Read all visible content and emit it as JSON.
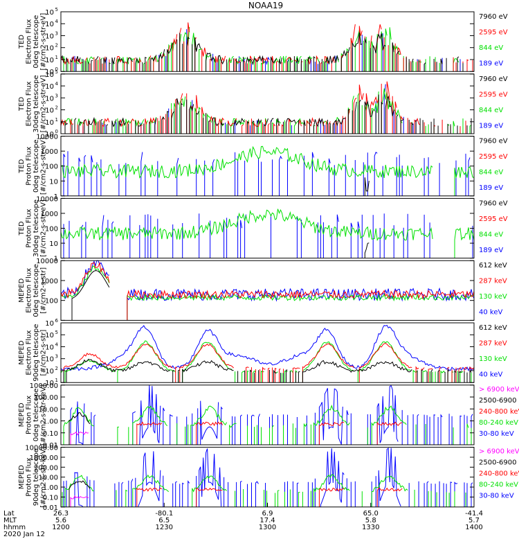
{
  "title": "NOAA19",
  "colors": {
    "black": "#000000",
    "red": "#ff0000",
    "green": "#00e000",
    "blue": "#0000ff",
    "magenta": "#ff00ff"
  },
  "chart_data": {
    "type": "line",
    "x_axis": {
      "rows": [
        {
          "label": "Lat",
          "ticks": [
            "26.3",
            "-80.1",
            "6.9",
            "65.0",
            "-41.4"
          ]
        },
        {
          "label": "MLT",
          "ticks": [
            "5.6",
            "6.5",
            "17.4",
            "5.8",
            "5.7"
          ]
        },
        {
          "label": "hhmm",
          "ticks": [
            "1200",
            "1230",
            "1300",
            "1330",
            "1400"
          ]
        }
      ],
      "date": "2020 Jan 12",
      "range_hhmm": [
        "1200",
        "1400"
      ]
    },
    "panels": [
      {
        "ylabel": [
          "TED",
          "Electron Flux",
          "0deg telescope",
          "[#/cm2-s-str-eV]"
        ],
        "ylim": [
          1,
          100000
        ],
        "log": true,
        "ytick_style": "pow",
        "yticks": [
          "10",
          "10",
          "10",
          "10",
          "10",
          "10"
        ],
        "ytick_exp": [
          "0",
          "1",
          "2",
          "3",
          "4",
          "5"
        ],
        "legend": [
          {
            "label": "7960 eV",
            "color": "#000000"
          },
          {
            "label": "2595 eV",
            "color": "#ff0000"
          },
          {
            "label": "844 eV",
            "color": "#00e000"
          },
          {
            "label": "189 eV",
            "color": "#0000ff"
          }
        ]
      },
      {
        "ylabel": [
          "TED",
          "Electron Flux",
          "30deg telescope",
          "[#/cm2-s-str-eV]"
        ],
        "ylim": [
          1,
          100000
        ],
        "log": true,
        "ytick_style": "pow",
        "yticks": [
          "10",
          "10",
          "10",
          "10",
          "10",
          "10"
        ],
        "ytick_exp": [
          "0",
          "1",
          "2",
          "3",
          "4",
          "5"
        ],
        "legend": [
          {
            "label": "7960 eV",
            "color": "#000000"
          },
          {
            "label": "2595 eV",
            "color": "#ff0000"
          },
          {
            "label": "844 eV",
            "color": "#00e000"
          },
          {
            "label": "189 eV",
            "color": "#0000ff"
          }
        ]
      },
      {
        "ylabel": [
          "TED",
          "Proton Flux",
          "0deg telescope",
          "[#/cm2-s-str-eV]"
        ],
        "ylim": [
          1,
          10000
        ],
        "log": true,
        "ytick_style": "plain",
        "yticks": [
          "1",
          "10",
          "100",
          "1000",
          "10000"
        ],
        "legend": [
          {
            "label": "7960 eV",
            "color": "#000000"
          },
          {
            "label": "2595 eV",
            "color": "#ff0000"
          },
          {
            "label": "844 eV",
            "color": "#00e000"
          },
          {
            "label": "189 eV",
            "color": "#0000ff"
          }
        ]
      },
      {
        "ylabel": [
          "TED",
          "Proton Flux",
          "30deg telescope",
          "[#/cm2-s-str-eV]"
        ],
        "ylim": [
          1,
          10000
        ],
        "log": true,
        "ytick_style": "plain",
        "yticks": [
          "1",
          "10",
          "100",
          "1000",
          "10000"
        ],
        "legend": [
          {
            "label": "7960 eV",
            "color": "#000000"
          },
          {
            "label": "2595 eV",
            "color": "#ff0000"
          },
          {
            "label": "844 eV",
            "color": "#00e000"
          },
          {
            "label": "189 eV",
            "color": "#0000ff"
          }
        ]
      },
      {
        "ylabel": [
          "MEPED",
          "Electron Flux",
          "0deg telescope",
          "[#/cm2-s-str]"
        ],
        "ylim": [
          10,
          10000
        ],
        "log": true,
        "ytick_style": "plain",
        "yticks": [
          "",
          "100",
          "1000",
          "10000"
        ],
        "legend": [
          {
            "label": "612 keV",
            "color": "#000000"
          },
          {
            "label": "287 keV",
            "color": "#ff0000"
          },
          {
            "label": "130 keV",
            "color": "#00e000"
          },
          {
            "label": "40 keV",
            "color": "#0000ff"
          }
        ]
      },
      {
        "ylabel": [
          "MEPED",
          "Electron Flux",
          "90deg telescope",
          "[#/cm2-s-str]"
        ],
        "ylim": [
          10,
          1000000
        ],
        "log": true,
        "ytick_style": "pow",
        "yticks": [
          "10",
          "10",
          "10",
          "10",
          "10",
          "10"
        ],
        "ytick_exp": [
          "1",
          "2",
          "3",
          "4",
          "5",
          "6"
        ],
        "legend": [
          {
            "label": "612 keV",
            "color": "#000000"
          },
          {
            "label": "287 keV",
            "color": "#ff0000"
          },
          {
            "label": "130 keV",
            "color": "#00e000"
          },
          {
            "label": "40 keV",
            "color": "#0000ff"
          }
        ]
      },
      {
        "ylabel": [
          "MEPED",
          "Proton Flux",
          "0deg telescope",
          "[#/cm2-s-str-keV]"
        ],
        "ylim": [
          0.01,
          1000
        ],
        "log": true,
        "ytick_style": "plain",
        "yticks": [
          "0.01",
          "0.10",
          "1.00",
          "10.00",
          "100.00",
          "1000.00"
        ],
        "legend": [
          {
            "label": "> 6900 keV",
            "color": "#ff00ff"
          },
          {
            "label": "2500-6900",
            "color": "#000000"
          },
          {
            "label": "240-800 keV",
            "color": "#ff0000"
          },
          {
            "label": "80-240 keV",
            "color": "#00e000"
          },
          {
            "label": "30-80 keV",
            "color": "#0000ff"
          }
        ]
      },
      {
        "ylabel": [
          "MEPED",
          "Proton Flux",
          "90deg telescope",
          "[#/cm2-s-str-keV]"
        ],
        "ylim": [
          0.01,
          10000
        ],
        "log": true,
        "ytick_style": "plain",
        "yticks": [
          "0.01",
          "0.10",
          "1.00",
          "10.00",
          "100.00",
          "1000.00",
          "10000.00"
        ],
        "legend": [
          {
            "label": "> 6900 keV",
            "color": "#ff00ff"
          },
          {
            "label": "2500-6900",
            "color": "#000000"
          },
          {
            "label": "240-800 keV",
            "color": "#ff0000"
          },
          {
            "label": "80-240 keV",
            "color": "#00e000"
          },
          {
            "label": "30-80 keV",
            "color": "#0000ff"
          }
        ]
      }
    ]
  }
}
